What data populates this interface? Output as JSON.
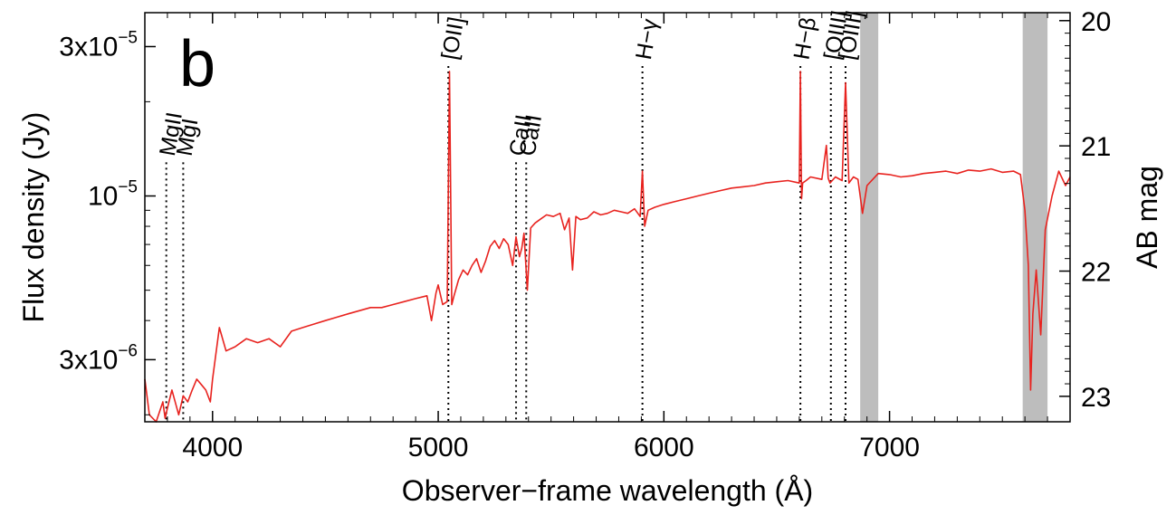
{
  "chart_data": {
    "type": "line",
    "panel_label": "b",
    "xlabel": "Observer−frame wavelength (Å)",
    "ylabel": "Flux density (Jy)",
    "y2label": "AB mag",
    "xlim": [
      3700,
      7800
    ],
    "ylim": [
      1.9e-06,
      3.85e-05
    ],
    "yscale": "log",
    "x_ticks": [
      {
        "value": 4000,
        "label": "4000"
      },
      {
        "value": 5000,
        "label": "5000"
      },
      {
        "value": 6000,
        "label": "6000"
      },
      {
        "value": 7000,
        "label": "7000"
      }
    ],
    "y_ticks": [
      {
        "value": 3e-06,
        "label": "3x10",
        "exp": "−6"
      },
      {
        "value": 1e-05,
        "label": "10",
        "exp": "−5"
      },
      {
        "value": 3e-05,
        "label": "3x10",
        "exp": "−5"
      }
    ],
    "y2_ticks": [
      {
        "value": 20,
        "label": "20"
      },
      {
        "value": 21,
        "label": "21"
      },
      {
        "value": 22,
        "label": "22"
      },
      {
        "value": 23,
        "label": "23"
      }
    ],
    "series": [
      {
        "color": "#e8231f",
        "x": [
          3700,
          3720,
          3750,
          3780,
          3790,
          3800,
          3820,
          3850,
          3870,
          3890,
          3910,
          3930,
          3950,
          3970,
          3990,
          4000,
          4030,
          4060,
          4100,
          4150,
          4200,
          4250,
          4300,
          4350,
          4400,
          4450,
          4500,
          4550,
          4600,
          4650,
          4700,
          4750,
          4800,
          4850,
          4900,
          4950,
          4970,
          4990,
          5000,
          5020,
          5040,
          5050,
          5060,
          5070,
          5090,
          5110,
          5130,
          5150,
          5170,
          5190,
          5210,
          5230,
          5250,
          5270,
          5290,
          5310,
          5330,
          5345,
          5360,
          5370,
          5380,
          5395,
          5410,
          5430,
          5450,
          5480,
          5510,
          5540,
          5560,
          5580,
          5595,
          5610,
          5630,
          5660,
          5690,
          5720,
          5750,
          5780,
          5810,
          5840,
          5870,
          5895,
          5905,
          5915,
          5930,
          5960,
          6000,
          6050,
          6100,
          6150,
          6200,
          6250,
          6300,
          6350,
          6400,
          6450,
          6500,
          6550,
          6600,
          6605,
          6610,
          6615,
          6630,
          6650,
          6700,
          6720,
          6728,
          6736,
          6760,
          6790,
          6805,
          6820,
          6840,
          6860,
          6880,
          6900,
          6950,
          7000,
          7050,
          7100,
          7150,
          7200,
          7250,
          7300,
          7350,
          7400,
          7450,
          7500,
          7550,
          7580,
          7600,
          7615,
          7625,
          7635,
          7650,
          7670,
          7690,
          7720,
          7750,
          7780,
          7800
        ],
        "y": [
          2.6e-06,
          2e-06,
          1.9e-06,
          2.2e-06,
          1.95e-06,
          2.1e-06,
          2.4e-06,
          2e-06,
          2.3e-06,
          2.2e-06,
          2.4e-06,
          2.6e-06,
          2.5e-06,
          2.4e-06,
          2.2e-06,
          2.6e-06,
          3.8e-06,
          3.2e-06,
          3.3e-06,
          3.5e-06,
          3.4e-06,
          3.5e-06,
          3.3e-06,
          3.7e-06,
          3.8e-06,
          3.9e-06,
          4e-06,
          4.1e-06,
          4.2e-06,
          4.3e-06,
          4.4e-06,
          4.4e-06,
          4.5e-06,
          4.6e-06,
          4.7e-06,
          4.8e-06,
          4e-06,
          4.9e-06,
          5.2e-06,
          4.5e-06,
          4.6e-06,
          2.5e-05,
          4.5e-06,
          4.8e-06,
          5.4e-06,
          5.8e-06,
          5.6e-06,
          6e-06,
          6.3e-06,
          5.7e-06,
          6.2e-06,
          6.9e-06,
          7.2e-06,
          6.8e-06,
          7.3e-06,
          7e-06,
          6e-06,
          7.4e-06,
          6.4e-06,
          6.8e-06,
          7.6e-06,
          5e-06,
          7.9e-06,
          8.2e-06,
          8.4e-06,
          8.7e-06,
          8.6e-06,
          8.8e-06,
          7.8e-06,
          8.5e-06,
          5.8e-06,
          8.6e-06,
          8.4e-06,
          8.5e-06,
          8.9e-06,
          8.7e-06,
          8.8e-06,
          9e-06,
          8.9e-06,
          8.8e-06,
          9.1e-06,
          8.6e-06,
          1.2e-05,
          8e-06,
          9e-06,
          9.2e-06,
          9.4e-06,
          9.6e-06,
          9.8e-06,
          1e-05,
          1.02e-05,
          1.04e-05,
          1.06e-05,
          1.07e-05,
          1.08e-05,
          1.1e-05,
          1.11e-05,
          1.12e-05,
          1.1e-05,
          2.5e-05,
          9.8e-06,
          1.1e-05,
          1.12e-05,
          1.15e-05,
          1.13e-05,
          1.45e-05,
          1.14e-05,
          1.1e-05,
          1.15e-05,
          1.12e-05,
          2.3e-05,
          1.1e-05,
          1.15e-05,
          1.13e-05,
          8.8e-06,
          1.08e-05,
          1.18e-05,
          1.17e-05,
          1.15e-05,
          1.16e-05,
          1.18e-05,
          1.19e-05,
          1.2e-05,
          1.18e-05,
          1.21e-05,
          1.2e-05,
          1.22e-05,
          1.19e-05,
          1.2e-05,
          1.17e-05,
          9e-06,
          6e-06,
          2.4e-06,
          4.2e-06,
          5.8e-06,
          3.6e-06,
          7.8e-06,
          1e-05,
          1.2e-05,
          1.08e-05,
          1.15e-05
        ]
      }
    ],
    "line_markers": [
      {
        "label": "MgII",
        "x": 3795,
        "top": 1.28e-05
      },
      {
        "label": "MgI",
        "x": 3870,
        "top": 1.28e-05
      },
      {
        "label": "[OII]",
        "x": 5045,
        "top": 2.6e-05
      },
      {
        "label": "CaII",
        "x": 5345,
        "top": 1.28e-05
      },
      {
        "label": "CaII",
        "x": 5390,
        "top": 1.28e-05
      },
      {
        "label": "H−γ",
        "x": 5905,
        "top": 2.6e-05
      },
      {
        "label": "H−β",
        "x": 6605,
        "top": 2.6e-05
      },
      {
        "label": "[OIII]",
        "x": 6740,
        "top": 2.6e-05
      },
      {
        "label": "[OIII]",
        "x": 6805,
        "top": 2.6e-05
      }
    ],
    "shaded_bands": [
      {
        "x0": 6870,
        "x1": 6950,
        "color": "#bdbdbd"
      },
      {
        "x0": 7590,
        "x1": 7700,
        "color": "#bdbdbd"
      }
    ],
    "grid": false,
    "legend": "none"
  }
}
